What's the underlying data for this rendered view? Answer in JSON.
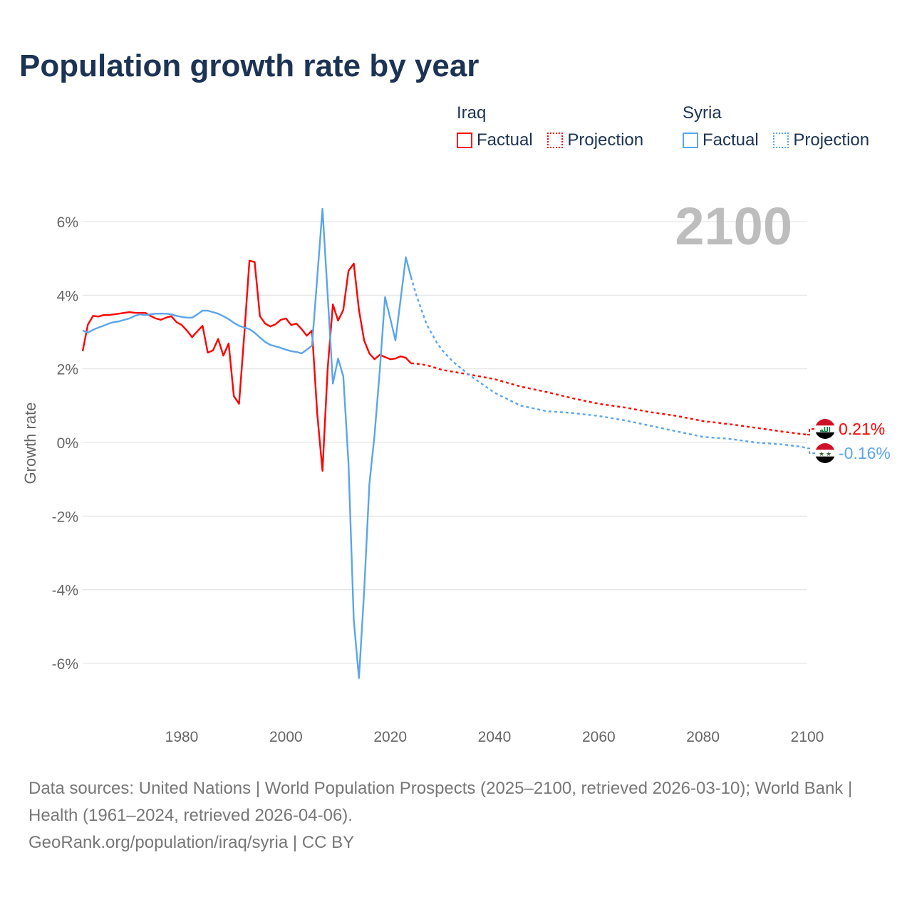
{
  "title": "Population growth rate by year",
  "legend": {
    "groups": [
      {
        "name": "Iraq",
        "color": "#ff0000",
        "factual": "Factual",
        "projection": "Projection"
      },
      {
        "name": "Syria",
        "color": "#5aa5ec",
        "factual": "Factual",
        "projection": "Projection"
      }
    ]
  },
  "year_watermark": "2100",
  "chart_data": {
    "type": "line",
    "title": "Population growth rate by year",
    "xlabel": "",
    "ylabel": "Growth rate",
    "xlim": [
      1961,
      2100
    ],
    "ylim": [
      -7,
      6.5
    ],
    "x_ticks": [
      1980,
      2000,
      2020,
      2040,
      2060,
      2080,
      2100
    ],
    "x_tick_labels": [
      "1980",
      "2000",
      "2020",
      "2040",
      "2060",
      "2080",
      "2100"
    ],
    "y_ticks": [
      6,
      4,
      2,
      0,
      -2,
      -4,
      -6
    ],
    "y_tick_labels": [
      "6%",
      "4%",
      "2%",
      "0%",
      "-2%",
      "-4%",
      "-6%"
    ],
    "grid": true,
    "legend_position": "top-right",
    "series": [
      {
        "name": "Iraq",
        "kind": "Factual",
        "color": "#ff0000",
        "dashed": false,
        "x_start": 1961,
        "values": [
          2.48,
          3.2,
          3.44,
          3.42,
          3.46,
          3.46,
          3.48,
          3.5,
          3.52,
          3.54,
          3.52,
          3.52,
          3.52,
          3.44,
          3.37,
          3.33,
          3.39,
          3.43,
          3.27,
          3.19,
          3.04,
          2.86,
          3.02,
          3.17,
          2.44,
          2.5,
          2.81,
          2.36,
          2.69,
          1.26,
          1.05,
          2.92,
          4.94,
          4.9,
          3.43,
          3.23,
          3.15,
          3.21,
          3.33,
          3.37,
          3.19,
          3.23,
          3.08,
          2.9,
          3.04,
          0.79,
          -0.77,
          2.01,
          3.75,
          3.31,
          3.6,
          4.66,
          4.86,
          3.6,
          2.77,
          2.42,
          2.26,
          2.38,
          2.32,
          2.26,
          2.28,
          2.34,
          2.3,
          2.15
        ]
      },
      {
        "name": "Iraq",
        "kind": "Projection",
        "color": "#ff0000",
        "dashed": true,
        "x": [
          2024,
          2025,
          2027,
          2030,
          2035,
          2040,
          2045,
          2050,
          2055,
          2060,
          2065,
          2070,
          2075,
          2080,
          2085,
          2090,
          2095,
          2100
        ],
        "values": [
          2.15,
          2.14,
          2.1,
          1.97,
          1.85,
          1.72,
          1.52,
          1.37,
          1.2,
          1.05,
          0.95,
          0.82,
          0.72,
          0.58,
          0.5,
          0.4,
          0.3,
          0.21
        ]
      },
      {
        "name": "Syria",
        "kind": "Factual",
        "color": "#5aa5ec",
        "dashed": false,
        "x_start": 1961,
        "values": [
          3.04,
          2.98,
          3.06,
          3.12,
          3.17,
          3.23,
          3.27,
          3.29,
          3.33,
          3.37,
          3.44,
          3.48,
          3.46,
          3.48,
          3.5,
          3.5,
          3.5,
          3.48,
          3.44,
          3.41,
          3.39,
          3.39,
          3.48,
          3.58,
          3.58,
          3.54,
          3.5,
          3.43,
          3.35,
          3.25,
          3.17,
          3.12,
          3.08,
          2.98,
          2.85,
          2.73,
          2.65,
          2.61,
          2.57,
          2.52,
          2.48,
          2.46,
          2.42,
          2.52,
          2.63,
          4.47,
          6.35,
          4.0,
          1.6,
          2.28,
          1.8,
          -0.56,
          -4.82,
          -6.4,
          -4.04,
          -1.14,
          0.21,
          1.95,
          3.95,
          3.37,
          2.77,
          3.89,
          5.03,
          4.49
        ]
      },
      {
        "name": "Syria",
        "kind": "Projection",
        "color": "#5aa5ec",
        "dashed": true,
        "x": [
          2024,
          2025,
          2026,
          2027,
          2028,
          2029,
          2030,
          2032,
          2035,
          2040,
          2045,
          2050,
          2055,
          2060,
          2065,
          2070,
          2075,
          2080,
          2085,
          2090,
          2095,
          2099,
          2100
        ],
        "values": [
          4.49,
          4.0,
          3.6,
          3.2,
          2.95,
          2.7,
          2.5,
          2.2,
          1.85,
          1.35,
          1.0,
          0.85,
          0.8,
          0.72,
          0.6,
          0.45,
          0.3,
          0.15,
          0.1,
          0.0,
          -0.05,
          -0.12,
          -0.16
        ]
      }
    ],
    "end_labels": [
      {
        "country": "Iraq",
        "text": "0.21%",
        "color": "#ff0000"
      },
      {
        "country": "Syria",
        "text": "-0.16%",
        "color": "#5aa5ec"
      }
    ]
  },
  "footer": {
    "line1": "Data sources: United Nations | World Population Prospects (2025–2100, retrieved 2026-03-10); World Bank | Health (1961–2024, retrieved 2026-04-06).",
    "line2": "GeoRank.org/population/iraq/syria | CC BY"
  }
}
